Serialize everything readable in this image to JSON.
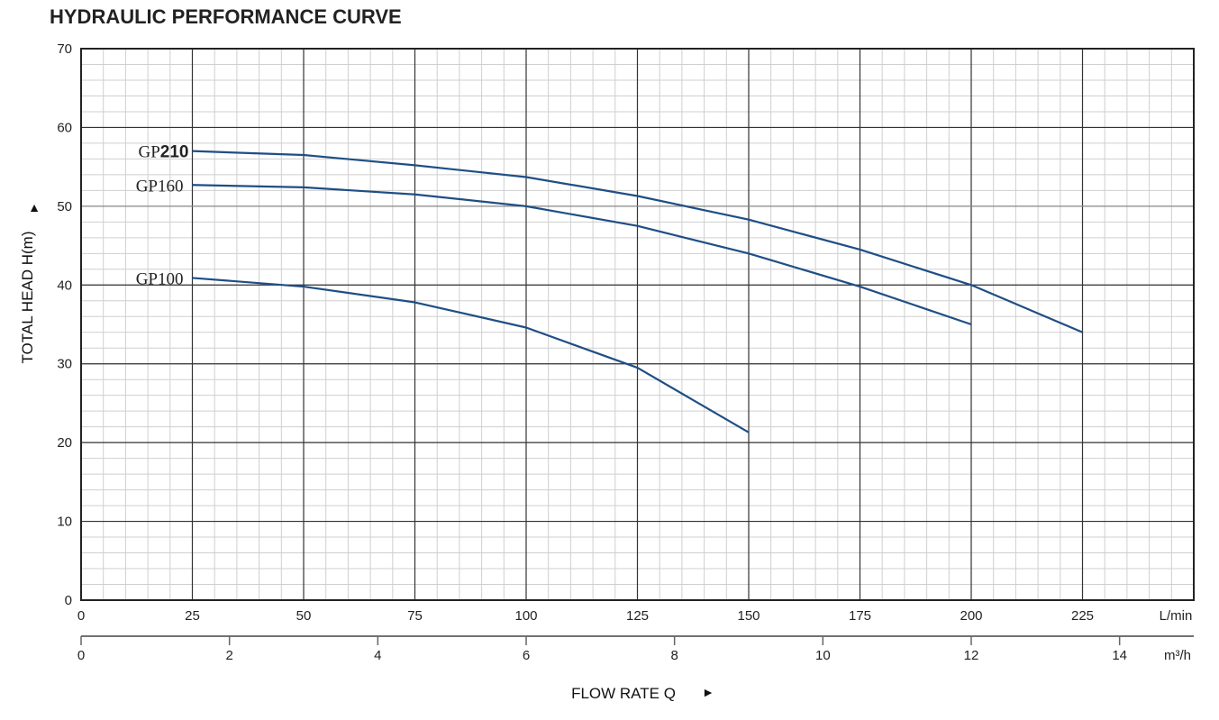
{
  "chart_data": {
    "type": "line",
    "title": "HYDRAULIC PERFORMANCE CURVE",
    "xlabel": "FLOW RATE Q",
    "ylabel": "TOTAL HEAD H(m)",
    "x_unit": "L/min",
    "x2_unit": "m³/h",
    "xlim": [
      0,
      250
    ],
    "ylim": [
      0,
      70
    ],
    "grid": true,
    "x_ticks": [
      0,
      25,
      50,
      75,
      100,
      125,
      150,
      175,
      200,
      225
    ],
    "x2_ticks": [
      0,
      2,
      4,
      6,
      8,
      10,
      12,
      14
    ],
    "y_ticks": [
      0,
      10,
      20,
      30,
      40,
      50,
      60,
      70
    ],
    "series": [
      {
        "name": "GP210",
        "label_prefix": "GP",
        "label_suffix": "210",
        "x": [
          25,
          50,
          75,
          100,
          125,
          150,
          175,
          200,
          225
        ],
        "y": [
          57.0,
          56.5,
          55.2,
          53.7,
          51.3,
          48.3,
          44.5,
          40.0,
          34.0
        ]
      },
      {
        "name": "GP160",
        "x": [
          25,
          50,
          75,
          100,
          125,
          150,
          175,
          200
        ],
        "y": [
          52.7,
          52.4,
          51.5,
          50.0,
          47.5,
          44.0,
          39.8,
          35.0
        ]
      },
      {
        "name": "GP100",
        "x": [
          25,
          50,
          75,
          100,
          125,
          150
        ],
        "y": [
          40.9,
          39.8,
          37.8,
          34.6,
          29.5,
          21.3
        ]
      }
    ],
    "line_color": "#1f4e85"
  }
}
